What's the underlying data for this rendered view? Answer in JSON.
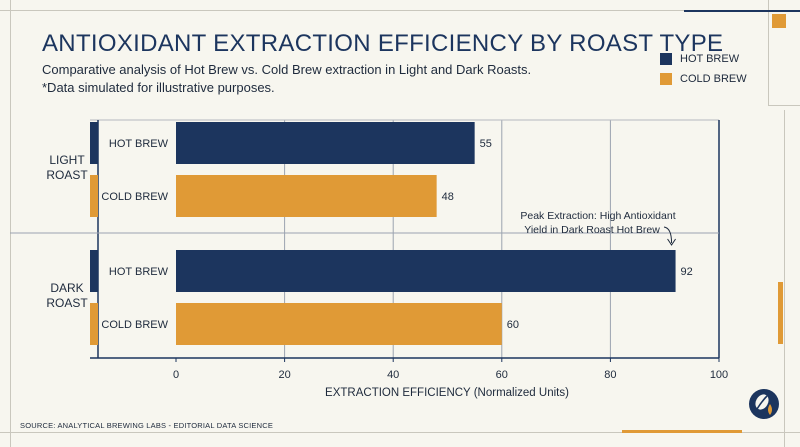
{
  "header": {
    "title": "ANTIOXIDANT EXTRACTION EFFICIENCY BY ROAST TYPE",
    "subtitle_line1": "Comparative analysis of Hot Brew vs. Cold Brew extraction in Light and Dark Roasts.",
    "subtitle_line2": "*Data simulated for illustrative purposes."
  },
  "legend": {
    "items": [
      {
        "label": "HOT BREW",
        "color": "#1c355e"
      },
      {
        "label": "COLD BREW",
        "color": "#e09a36"
      }
    ],
    "placement": "top-right"
  },
  "footer": {
    "source": "SOURCE: ANALYTICAL BREWING LABS - EDITORIAL DATA SCIENCE"
  },
  "logo": {
    "icon": "coffee-bean-drop-icon"
  },
  "chart_data": {
    "type": "bar",
    "orientation": "horizontal",
    "xlabel": "EXTRACTION EFFICIENCY (Normalized Units)",
    "xlim": [
      0,
      100
    ],
    "xticks": [
      0,
      20,
      40,
      60,
      80,
      100
    ],
    "grid": true,
    "groups": [
      {
        "label_lines": [
          "LIGHT",
          "ROAST"
        ],
        "bars": [
          {
            "label": "HOT BREW",
            "value": 55,
            "color": "#1c355e"
          },
          {
            "label": "COLD BREW",
            "value": 48,
            "color": "#e09a36"
          }
        ]
      },
      {
        "label_lines": [
          "DARK",
          "ROAST"
        ],
        "bars": [
          {
            "label": "HOT BREW",
            "value": 92,
            "color": "#1c355e"
          },
          {
            "label": "COLD BREW",
            "value": 60,
            "color": "#e09a36"
          }
        ]
      }
    ],
    "annotation": {
      "lines": [
        "Peak Extraction: High Antioxidant",
        "Yield in Dark Roast Hot Brew"
      ],
      "target_group": 1,
      "target_bar": 0
    }
  }
}
